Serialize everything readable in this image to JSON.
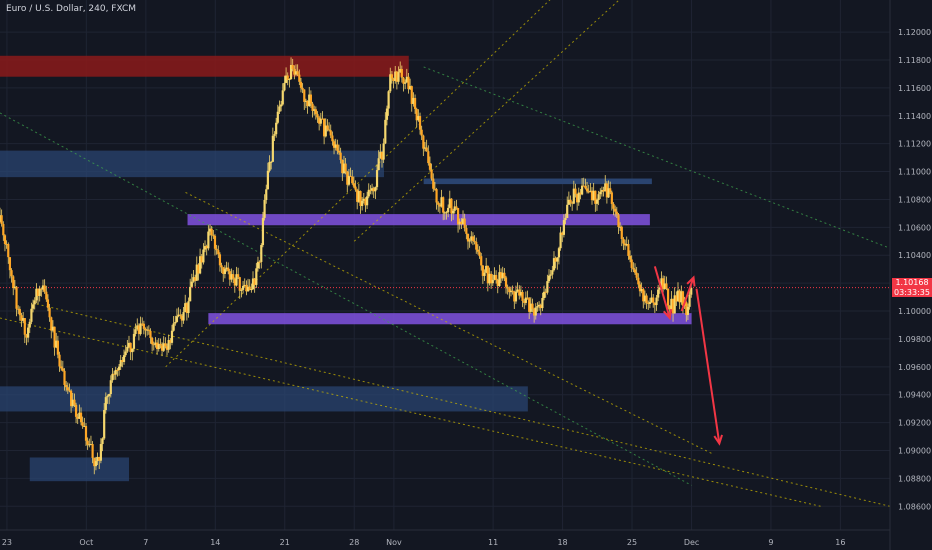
{
  "title": "Euro / U.S. Dollar, 240, FXCM",
  "last_price": "1.10168",
  "countdown": "03:33:35",
  "colors": {
    "background": "#131722",
    "grid": "#1f2433",
    "axis_text": "#b2b5be",
    "candle_body": "#ffa726",
    "candle_wick": "#f5d76e",
    "supply_zone": "#8b1a1a",
    "demand_zone": "#2a4470",
    "key_level": "#7b4fd6",
    "trendline": "#3fa34d",
    "channel_line": "#c8b400",
    "arrow": "#f23645",
    "last_price": "#f23645"
  },
  "chart_data": {
    "type": "candlestick",
    "symbol": "EUR/USD",
    "timeframe": "240",
    "source": "FXCM",
    "x_axis": {
      "ticks": [
        {
          "label": "23",
          "day": -8
        },
        {
          "label": "Oct",
          "day": 0
        },
        {
          "label": "7",
          "day": 6
        },
        {
          "label": "14",
          "day": 13
        },
        {
          "label": "21",
          "day": 20
        },
        {
          "label": "28",
          "day": 27
        },
        {
          "label": "Nov",
          "day": 31
        },
        {
          "label": "11",
          "day": 41
        },
        {
          "label": "18",
          "day": 48
        },
        {
          "label": "25",
          "day": 55
        },
        {
          "label": "Dec",
          "day": 61
        },
        {
          "label": "9",
          "day": 69
        },
        {
          "label": "16",
          "day": 76
        }
      ],
      "range_days": [
        -8.7,
        81
      ]
    },
    "y_axis": {
      "ticks": [
        "1.12000",
        "1.11800",
        "1.11600",
        "1.11400",
        "1.11200",
        "1.11000",
        "1.10800",
        "1.10600",
        "1.10400",
        "1.10200",
        "1.10000",
        "1.09800",
        "1.09600",
        "1.09400",
        "1.09200",
        "1.09000",
        "1.08800",
        "1.08600"
      ],
      "range": [
        1.0843,
        1.1223
      ]
    },
    "price_path": [
      [
        -8.7,
        1.1064
      ],
      [
        -8.0,
        1.1048
      ],
      [
        -7.0,
        1.1005
      ],
      [
        -6.0,
        1.0985
      ],
      [
        -5.0,
        1.1015
      ],
      [
        -4.5,
        1.102
      ],
      [
        -3.5,
        1.099
      ],
      [
        -2.5,
        1.0955
      ],
      [
        -1.5,
        1.0935
      ],
      [
        -0.5,
        1.0918
      ],
      [
        0.5,
        1.0898
      ],
      [
        1.0,
        1.0892
      ],
      [
        1.5,
        1.0903
      ],
      [
        2.0,
        1.094
      ],
      [
        3.0,
        1.096
      ],
      [
        4.0,
        1.0968
      ],
      [
        5.0,
        1.0985
      ],
      [
        6.0,
        1.099
      ],
      [
        7.0,
        1.0975
      ],
      [
        8.0,
        1.0972
      ],
      [
        9.0,
        1.099
      ],
      [
        10.0,
        1.1
      ],
      [
        11.0,
        1.1025
      ],
      [
        12.0,
        1.1045
      ],
      [
        12.5,
        1.106
      ],
      [
        13.5,
        1.1035
      ],
      [
        14.5,
        1.1025
      ],
      [
        15.5,
        1.102
      ],
      [
        16.5,
        1.101
      ],
      [
        17.5,
        1.104
      ],
      [
        18.0,
        1.108
      ],
      [
        19.0,
        1.113
      ],
      [
        20.0,
        1.116
      ],
      [
        20.5,
        1.1172
      ],
      [
        21.0,
        1.117
      ],
      [
        22.0,
        1.1155
      ],
      [
        23.0,
        1.1145
      ],
      [
        24.0,
        1.113
      ],
      [
        25.0,
        1.112
      ],
      [
        26.0,
        1.11
      ],
      [
        27.0,
        1.1085
      ],
      [
        28.0,
        1.1078
      ],
      [
        29.0,
        1.109
      ],
      [
        30.0,
        1.112
      ],
      [
        30.5,
        1.1165
      ],
      [
        31.0,
        1.117
      ],
      [
        32.0,
        1.1168
      ],
      [
        33.0,
        1.115
      ],
      [
        34.0,
        1.112
      ],
      [
        35.0,
        1.1085
      ],
      [
        36.0,
        1.1075
      ],
      [
        37.0,
        1.1075
      ],
      [
        38.0,
        1.106
      ],
      [
        39.0,
        1.105
      ],
      [
        40.0,
        1.103
      ],
      [
        41.0,
        1.102
      ],
      [
        42.0,
        1.1025
      ],
      [
        43.0,
        1.1012
      ],
      [
        44.0,
        1.101
      ],
      [
        45.0,
        1.1
      ],
      [
        46.0,
        1.1008
      ],
      [
        47.0,
        1.103
      ],
      [
        48.0,
        1.106
      ],
      [
        49.0,
        1.1082
      ],
      [
        50.0,
        1.1085
      ],
      [
        51.0,
        1.108
      ],
      [
        52.0,
        1.1088
      ],
      [
        53.0,
        1.108
      ],
      [
        54.0,
        1.1055
      ],
      [
        55.0,
        1.103
      ],
      [
        56.0,
        1.1012
      ],
      [
        57.0,
        1.1005
      ],
      [
        58.0,
        1.102
      ],
      [
        59.0,
        1.1003
      ],
      [
        60.0,
        1.1012
      ],
      [
        60.5,
        1.1
      ],
      [
        61.0,
        1.1016
      ]
    ],
    "zones": [
      {
        "kind": "supply",
        "x0": -8.7,
        "x1": 32.5,
        "y0": 1.1168,
        "y1": 1.1183
      },
      {
        "kind": "demand",
        "x0": -8.7,
        "x1": 30.0,
        "y0": 1.1096,
        "y1": 1.1115
      },
      {
        "kind": "demand",
        "x0": -8.7,
        "x1": 44.5,
        "y0": 1.0928,
        "y1": 1.0946
      },
      {
        "kind": "demand",
        "x0": -5.7,
        "x1": 4.3,
        "y0": 1.0878,
        "y1": 1.0895
      }
    ],
    "levels": [
      {
        "kind": "key",
        "x0": 10.2,
        "x1": 56.8,
        "y": 1.10655,
        "thickness": 0.0008
      },
      {
        "kind": "key",
        "x0": 12.3,
        "x1": 61.0,
        "y": 1.09945,
        "thickness": 0.0008
      },
      {
        "kind": "resistance",
        "x0": 34.0,
        "x1": 57.0,
        "y": 1.1093,
        "thickness": 0.0004
      }
    ],
    "trendlines": [
      {
        "kind": "trendline",
        "from": [
          -8.7,
          1.1142
        ],
        "to": [
          61.0,
          1.0875
        ]
      },
      {
        "kind": "trendline",
        "from": [
          34.0,
          1.1175
        ],
        "to": [
          81.0,
          1.1045
        ]
      },
      {
        "kind": "channel",
        "from": [
          -8.7,
          1.0995
        ],
        "to": [
          74.0,
          1.086
        ]
      },
      {
        "kind": "channel",
        "from": [
          -5.0,
          1.1005
        ],
        "to": [
          81.0,
          1.086
        ]
      },
      {
        "kind": "channel",
        "from": [
          10.0,
          1.1085
        ],
        "to": [
          63.0,
          1.0898
        ]
      },
      {
        "kind": "channel",
        "from": [
          8.0,
          1.096
        ],
        "to": [
          47.0,
          1.1225
        ]
      },
      {
        "kind": "channel",
        "from": [
          27.0,
          1.105
        ],
        "to": [
          54.0,
          1.1225
        ]
      }
    ],
    "arrows": [
      {
        "from": [
          57.3,
          1.1032
        ],
        "to": [
          58.8,
          1.0995
        ]
      },
      {
        "from": [
          60.0,
          1.1
        ],
        "to": [
          61.2,
          1.1024
        ]
      },
      {
        "from": [
          61.5,
          1.1016
        ],
        "to": [
          63.8,
          1.0905
        ]
      }
    ],
    "last_price_value": 1.10168
  }
}
